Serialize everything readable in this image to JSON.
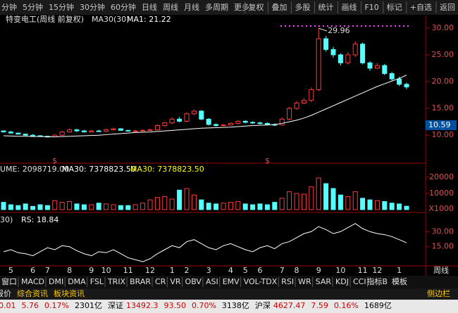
{
  "toolbar": {
    "left": [
      "分钟",
      "5分钟",
      "15分钟",
      "30分钟",
      "60分钟",
      "日线",
      "周线",
      "月线",
      "多周期",
      "更多"
    ],
    "right": [
      "复权",
      "叠加",
      "多股",
      "统计",
      "画线",
      "F10",
      "标记",
      "+自选",
      "返回"
    ]
  },
  "info": {
    "name": "特变电工(周线 前复权)",
    "ma": "MA30(30)",
    "ma_value": "MA1: 21.22"
  },
  "price_marker": "10.59",
  "vol_label": "UME: 2098719.00",
  "vol_ma": "MA30: 7378823.50",
  "vol_ma2": "MA30: 7378823.50",
  "vol_unit": "X1000",
  "rs_label": "30)",
  "rs_value": "RS: 18.84",
  "period_label": "周线",
  "tabs": [
    "窗口",
    "MACD",
    "DMI",
    "DMA",
    "FSL",
    "TRIX",
    "BRAR",
    "CR",
    "VR",
    "OBV",
    "ASI",
    "EMV",
    "VOL-TDX",
    "RSI",
    "WR",
    "SAR",
    "KDJ",
    "CCI"
  ],
  "tabs_right": [
    "指标B",
    "模板"
  ],
  "tabs2": [
    "模拟报价",
    "综合资讯",
    "板块资讯"
  ],
  "sidebar": "侧边栏",
  "status": [
    "0.01",
    "5.76",
    "0.17%",
    "2301亿",
    "深证",
    "13492.3",
    "93.50",
    "0.70%",
    "3138亿",
    "沪深",
    "4627.47",
    "7.59",
    "0.16%",
    "1689亿"
  ],
  "chart_data": [
    {
      "type": "candlestick",
      "annotation": "29.96",
      "marker": "$",
      "categories": [
        null,
        "5",
        null,
        null,
        "6",
        null,
        "7",
        null,
        null,
        "8",
        null,
        null,
        "9",
        null,
        "10",
        null,
        null,
        "11",
        null,
        null,
        "12",
        null,
        null,
        "1",
        null,
        "2",
        null,
        null,
        "3",
        null,
        null,
        "4",
        null,
        "5",
        null,
        "6",
        null,
        null,
        "7",
        null,
        "8",
        null,
        null,
        "9",
        null,
        null,
        "10",
        null,
        null,
        "11",
        null,
        "12",
        null,
        null,
        "1",
        null
      ],
      "open": [
        10.8,
        10.6,
        10.4,
        10.2,
        10.0,
        9.9,
        9.8,
        9.7,
        10.0,
        10.6,
        11.0,
        10.8,
        10.6,
        10.8,
        10.7,
        11.0,
        11.2,
        10.9,
        10.8,
        10.8,
        10.9,
        11.0,
        11.8,
        12.3,
        13.0,
        12.6,
        14.0,
        14.5,
        13.0,
        12.0,
        11.8,
        11.9,
        12.2,
        12.6,
        12.4,
        12.3,
        12.2,
        12.0,
        11.9,
        13.0,
        15.0,
        16.0,
        16.5,
        18.5,
        28.0,
        26.0,
        25.0,
        23.5,
        25.0,
        27.0,
        23.5,
        22.5,
        23.0,
        21.5,
        20.5,
        19.5
      ],
      "high": [
        10.9,
        10.8,
        10.5,
        10.3,
        10.2,
        10.0,
        9.9,
        10.2,
        10.8,
        11.2,
        11.2,
        11.0,
        11.0,
        11.0,
        11.2,
        11.4,
        11.3,
        11.0,
        11.0,
        11.1,
        11.2,
        12.0,
        12.5,
        13.3,
        13.4,
        14.3,
        14.8,
        14.7,
        13.2,
        12.2,
        12.1,
        12.4,
        12.8,
        12.8,
        12.6,
        12.5,
        12.4,
        12.2,
        13.3,
        15.3,
        16.4,
        16.9,
        18.9,
        29.96,
        28.5,
        26.5,
        25.3,
        25.5,
        27.5,
        27.3,
        23.8,
        23.5,
        23.3,
        21.8,
        20.9,
        19.8
      ],
      "low": [
        10.5,
        10.3,
        10.1,
        9.9,
        9.8,
        9.7,
        9.6,
        9.6,
        9.9,
        10.5,
        10.6,
        10.5,
        10.5,
        10.6,
        10.6,
        10.9,
        10.8,
        10.7,
        10.7,
        10.7,
        10.8,
        10.9,
        11.6,
        12.1,
        12.4,
        12.4,
        13.7,
        12.8,
        11.8,
        11.6,
        11.7,
        11.8,
        12.0,
        12.2,
        12.1,
        12.0,
        11.9,
        11.7,
        11.8,
        12.8,
        14.7,
        15.8,
        16.2,
        18.2,
        25.6,
        24.5,
        23.0,
        23.2,
        24.6,
        23.2,
        22.0,
        22.3,
        21.2,
        20.2,
        19.2,
        18.6
      ],
      "close": [
        10.6,
        10.4,
        10.2,
        10.0,
        9.9,
        9.8,
        9.7,
        10.0,
        10.6,
        11.0,
        10.8,
        10.6,
        10.8,
        10.7,
        11.0,
        11.2,
        10.9,
        10.8,
        10.8,
        10.9,
        11.0,
        11.8,
        12.3,
        13.0,
        12.6,
        14.0,
        14.5,
        13.0,
        12.0,
        11.8,
        11.9,
        12.2,
        12.6,
        12.4,
        12.3,
        12.2,
        12.0,
        11.9,
        13.0,
        15.0,
        16.0,
        16.5,
        18.5,
        28.0,
        26.0,
        25.0,
        23.5,
        25.0,
        27.0,
        23.5,
        22.5,
        23.0,
        21.5,
        20.5,
        19.5,
        19.0
      ],
      "series": [
        {
          "name": "MA30",
          "color": "#ffffff",
          "values": [
            9.9,
            9.85,
            9.8,
            9.8,
            9.75,
            9.75,
            9.7,
            9.7,
            9.75,
            9.8,
            9.85,
            9.9,
            9.95,
            10.0,
            10.1,
            10.2,
            10.3,
            10.4,
            10.5,
            10.55,
            10.6,
            10.7,
            10.8,
            10.9,
            11.0,
            11.1,
            11.2,
            11.3,
            11.35,
            11.4,
            11.45,
            11.5,
            11.6,
            11.7,
            11.8,
            11.85,
            11.9,
            12.0,
            12.2,
            12.5,
            12.8,
            13.2,
            13.7,
            14.3,
            14.9,
            15.5,
            16.1,
            16.7,
            17.3,
            17.9,
            18.5,
            19.1,
            19.6,
            20.1,
            20.6,
            21.22
          ]
        }
      ],
      "up_color": "#ff3c3c",
      "down_color": "#54ffff",
      "ylim": [
        5.3,
        30.9
      ],
      "yticks": [
        {
          "value": 10,
          "label": "10.00"
        },
        {
          "value": 15,
          "label": "15.00"
        },
        {
          "value": 20,
          "label": "20.00"
        },
        {
          "value": 25,
          "label": "25.00"
        },
        {
          "value": 30,
          "label": "30.00"
        }
      ]
    },
    {
      "type": "bar",
      "values": [
        4500,
        3000,
        2500,
        3500,
        2000,
        3000,
        2500,
        5500,
        4500,
        5000,
        3500,
        3000,
        3000,
        4000,
        3500,
        3000,
        2500,
        2500,
        3000,
        4000,
        6000,
        7500,
        8000,
        6500,
        12000,
        13000,
        9000,
        6000,
        4000,
        3500,
        4000,
        4500,
        5000,
        3500,
        3000,
        3500,
        3000,
        4500,
        7000,
        11000,
        10000,
        9500,
        14000,
        19500,
        16000,
        13000,
        9000,
        8000,
        11000,
        7000,
        6000,
        5500,
        5000,
        4000,
        3500,
        2098.719
      ],
      "ylim": [
        0,
        26000
      ],
      "yticks": [
        10000,
        20000
      ]
    },
    {
      "type": "line",
      "series": [
        {
          "name": "RS",
          "color": "#ffffff",
          "values": [
            10,
            12,
            9,
            8,
            6,
            10,
            14,
            12,
            16,
            15,
            11,
            8,
            6,
            10,
            9,
            12,
            8,
            4,
            2,
            0,
            3,
            8,
            12,
            16,
            14,
            20,
            22,
            18,
            14,
            12,
            16,
            18,
            15,
            12,
            10,
            14,
            16,
            13,
            18,
            20,
            24,
            28,
            30,
            35,
            32,
            28,
            30,
            34,
            38,
            33,
            30,
            28,
            27,
            25,
            22,
            18.84
          ]
        }
      ],
      "ylim": [
        -2.7,
        47
      ],
      "yticks": [
        {
          "value": 15,
          "label": "15.00"
        },
        {
          "value": 30,
          "label": "30.00"
        }
      ]
    }
  ]
}
